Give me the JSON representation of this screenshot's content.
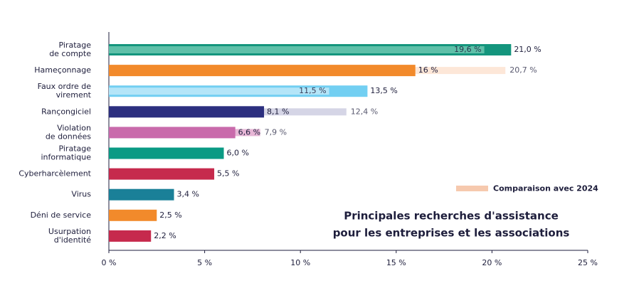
{
  "chart_data": {
    "type": "bar",
    "orientation": "horizontal",
    "title": [
      "Principales recherches d'assistance",
      "pour les entreprises et les associations"
    ],
    "categories": [
      [
        "Piratage",
        "de compte"
      ],
      [
        "Hameçonnage"
      ],
      [
        "Faux ordre de",
        "virement"
      ],
      [
        "Rançongiciel"
      ],
      [
        "Violation",
        "de données"
      ],
      [
        "Piratage",
        "informatique"
      ],
      [
        "Cyberharcèlement"
      ],
      [
        "Virus"
      ],
      [
        "Déni de service"
      ],
      [
        "Usurpation",
        "d'identité"
      ]
    ],
    "series": [
      {
        "values": [
          21.0,
          16,
          13.5,
          8.1,
          6.6,
          6.0,
          5.5,
          3.4,
          2.5,
          2.2
        ],
        "value_labels": [
          "21,0 %",
          "16 %",
          "13,5 %",
          "8,1 %",
          "6,6 %",
          "6,0 %",
          "5,5 %",
          "3,4 %",
          "2,5 %",
          "2,2 %"
        ],
        "colors": [
          "#14957d",
          "#f28a2b",
          "#72cff2",
          "#2c2f7f",
          "#c96aab",
          "#0a9a84",
          "#c62a4d",
          "#1a8098",
          "#f28a2b",
          "#c62a4d"
        ]
      },
      {
        "name": "Comparaison avec 2024",
        "color": "#f6c9ae",
        "values": [
          19.6,
          20.7,
          11.5,
          12.4,
          7.9,
          null,
          null,
          null,
          null,
          null
        ],
        "value_labels": [
          "19,6 %",
          "20,7 %",
          "11,5 %",
          "12,4 %",
          "7,9 %",
          null,
          null,
          null,
          null,
          null
        ],
        "colors": [
          "#5fc0a9",
          "#fde7d8",
          "#b4e5f8",
          "#d5d5e6",
          "#e7b6d6",
          null,
          null,
          null,
          null,
          null
        ]
      }
    ],
    "xlim": [
      0,
      25
    ],
    "xticks": [
      {
        "value": 0,
        "label": "0 %"
      },
      {
        "value": 5,
        "label": "5 %"
      },
      {
        "value": 10,
        "label": "10 %"
      },
      {
        "value": 15,
        "label": "15 %"
      },
      {
        "value": 20,
        "label": "20 %"
      },
      {
        "value": 25,
        "label": "25 %"
      }
    ],
    "legend": "right"
  }
}
